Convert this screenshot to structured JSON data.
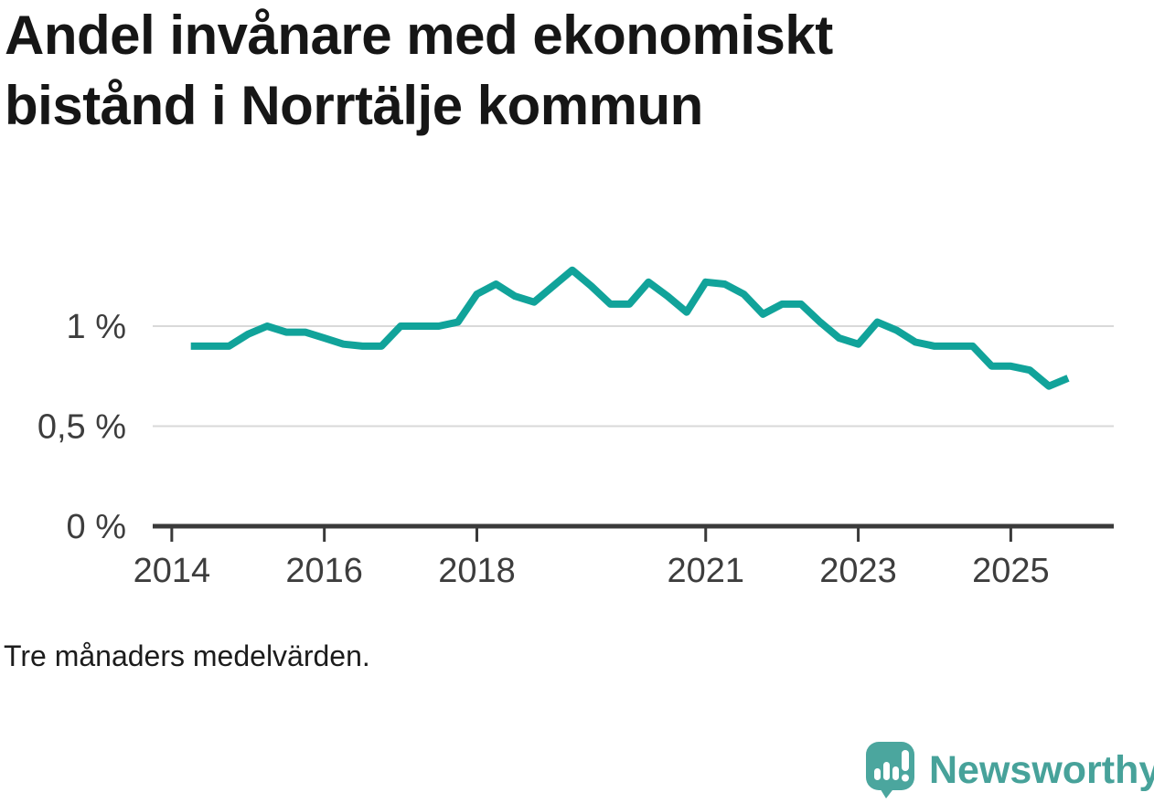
{
  "title": "Andel invånare med ekonomiskt bistånd i Norrtälje kommun",
  "footnote": "Tre månaders medelvärden.",
  "branding": {
    "name": "Newsworthy"
  },
  "colors": {
    "accent": "#11a39a",
    "logo_teal": "#4ba69e",
    "grid": "#d9d9d9",
    "axis": "#3a3a3a",
    "tick_text": "#3d3d3d",
    "title_text": "#161616"
  },
  "chart_data": {
    "type": "line",
    "title": "Andel invånare med ekonomiskt bistånd i Norrtälje kommun",
    "subtitle_note": "Tre månaders medelvärden.",
    "unit": "%",
    "grid": "horizontal",
    "legend": "none",
    "xlim": [
      2013.75,
      2026.35
    ],
    "ylim": [
      0,
      1.4
    ],
    "x_ticks": [
      {
        "value": 2014,
        "label": "2014"
      },
      {
        "value": 2016,
        "label": "2016"
      },
      {
        "value": 2018,
        "label": "2018"
      },
      {
        "value": 2021,
        "label": "2021"
      },
      {
        "value": 2023,
        "label": "2023"
      },
      {
        "value": 2025,
        "label": "2025"
      }
    ],
    "y_ticks": [
      {
        "value": 0,
        "label": "0 %"
      },
      {
        "value": 0.5,
        "label": "0,5 %"
      },
      {
        "value": 1,
        "label": "1 %"
      }
    ],
    "series": [
      {
        "name": "Andel invånare med ekonomiskt bistånd",
        "x": [
          2014.25,
          2014.5,
          2014.75,
          2015.0,
          2015.25,
          2015.5,
          2015.75,
          2016.0,
          2016.25,
          2016.5,
          2016.75,
          2017.0,
          2017.25,
          2017.5,
          2017.75,
          2018.0,
          2018.25,
          2018.5,
          2018.75,
          2019.0,
          2019.25,
          2019.5,
          2019.75,
          2020.0,
          2020.25,
          2020.5,
          2020.75,
          2021.0,
          2021.25,
          2021.5,
          2021.75,
          2022.0,
          2022.25,
          2022.5,
          2022.75,
          2023.0,
          2023.25,
          2023.5,
          2023.75,
          2024.0,
          2024.25,
          2024.5,
          2024.75,
          2025.0,
          2025.25,
          2025.5,
          2025.75
        ],
        "y": [
          0.9,
          0.9,
          0.9,
          0.96,
          1.0,
          0.97,
          0.97,
          0.94,
          0.91,
          0.9,
          0.9,
          1.0,
          1.0,
          1.0,
          1.02,
          1.16,
          1.21,
          1.15,
          1.12,
          1.2,
          1.28,
          1.2,
          1.11,
          1.11,
          1.22,
          1.15,
          1.07,
          1.22,
          1.21,
          1.16,
          1.06,
          1.11,
          1.11,
          1.02,
          0.94,
          0.91,
          1.02,
          0.98,
          0.92,
          0.9,
          0.9,
          0.9,
          0.8,
          0.8,
          0.78,
          0.7,
          0.74
        ]
      }
    ]
  }
}
